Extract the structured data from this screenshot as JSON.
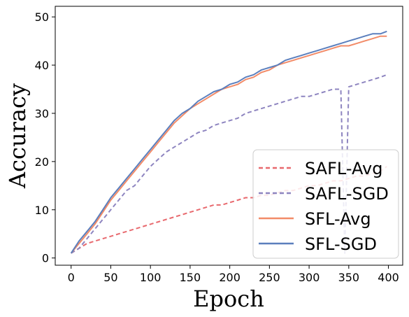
{
  "chart_data": {
    "type": "line",
    "title": "",
    "xlabel": "Epoch",
    "ylabel": "Accuracy",
    "xlim": [
      -20,
      418
    ],
    "ylim": [
      -1.5,
      52.2
    ],
    "xticks": [
      0,
      50,
      100,
      150,
      200,
      250,
      300,
      350,
      400
    ],
    "yticks": [
      0,
      10,
      20,
      30,
      40,
      50
    ],
    "grid": false,
    "legend_position": "lower-right",
    "series": [
      {
        "name": "SAFL-Avg",
        "color": "#e8696e",
        "style": "dashed",
        "x": [
          0,
          10,
          20,
          30,
          40,
          50,
          60,
          70,
          80,
          90,
          100,
          110,
          120,
          130,
          140,
          150,
          160,
          170,
          180,
          190,
          200,
          210,
          220,
          230,
          240,
          250,
          260,
          270,
          280,
          290,
          300,
          310,
          320,
          330,
          340,
          350,
          360,
          370,
          380,
          390,
          398
        ],
        "y": [
          1,
          2,
          3,
          3.5,
          4,
          4.5,
          5,
          5.5,
          6,
          6.5,
          7,
          7.5,
          8,
          8.5,
          9,
          9.5,
          10,
          10.5,
          11,
          11,
          11.5,
          12,
          12.5,
          12.5,
          13,
          13,
          13.5,
          14,
          14,
          14.5,
          15,
          15,
          15.5,
          16,
          16,
          16.5,
          17,
          17,
          17.5,
          18,
          19
        ]
      },
      {
        "name": "SAFL-SGD",
        "color": "#8e85c0",
        "style": "dashed",
        "x": [
          0,
          10,
          20,
          30,
          40,
          50,
          60,
          70,
          80,
          90,
          100,
          110,
          120,
          130,
          140,
          150,
          160,
          170,
          180,
          190,
          200,
          210,
          220,
          230,
          240,
          250,
          260,
          270,
          280,
          290,
          300,
          310,
          320,
          330,
          340,
          345,
          350,
          360,
          370,
          380,
          390,
          398
        ],
        "y": [
          1,
          2,
          4,
          6,
          8,
          10,
          12,
          14,
          15,
          17,
          19,
          20.5,
          22,
          23,
          24,
          25,
          26,
          26.5,
          27.5,
          28,
          28.5,
          29,
          30,
          30.5,
          31,
          31.5,
          32,
          32.5,
          33,
          33.5,
          33.5,
          34,
          34.5,
          35,
          35,
          1,
          35.5,
          36,
          36.5,
          37,
          37.5,
          38
        ]
      },
      {
        "name": "SFL-Avg",
        "color": "#f28b68",
        "style": "solid",
        "x": [
          0,
          10,
          20,
          30,
          40,
          50,
          60,
          70,
          80,
          90,
          100,
          110,
          120,
          130,
          140,
          150,
          160,
          170,
          180,
          190,
          200,
          210,
          220,
          230,
          240,
          250,
          260,
          270,
          280,
          290,
          300,
          310,
          320,
          330,
          340,
          350,
          360,
          370,
          380,
          390,
          398
        ],
        "y": [
          1,
          3,
          5,
          7,
          9.5,
          12,
          14,
          16,
          18,
          20,
          22,
          24,
          26,
          28,
          29.5,
          31,
          32,
          33,
          34,
          35,
          35.5,
          36,
          37,
          37.5,
          38.5,
          39,
          40,
          40.5,
          41,
          41.5,
          42,
          42.5,
          43,
          43.5,
          44,
          44,
          44.5,
          45,
          45.5,
          46,
          46
        ]
      },
      {
        "name": "SFL-SGD",
        "color": "#5b7fbd",
        "style": "solid",
        "x": [
          0,
          10,
          20,
          30,
          40,
          50,
          60,
          70,
          80,
          90,
          100,
          110,
          120,
          130,
          140,
          150,
          160,
          170,
          180,
          190,
          200,
          210,
          220,
          230,
          240,
          250,
          260,
          270,
          280,
          290,
          300,
          310,
          320,
          330,
          340,
          350,
          360,
          370,
          380,
          390,
          398
        ],
        "y": [
          1,
          3.5,
          5.5,
          7.5,
          10,
          12.5,
          14.5,
          16.5,
          18.5,
          20.5,
          22.5,
          24.5,
          26.5,
          28.5,
          30,
          31,
          32.5,
          33.5,
          34.5,
          35,
          36,
          36.5,
          37.5,
          38,
          39,
          39.5,
          40,
          41,
          41.5,
          42,
          42.5,
          43,
          43.5,
          44,
          44.5,
          45,
          45.5,
          46,
          46.5,
          46.5,
          47
        ]
      }
    ]
  }
}
